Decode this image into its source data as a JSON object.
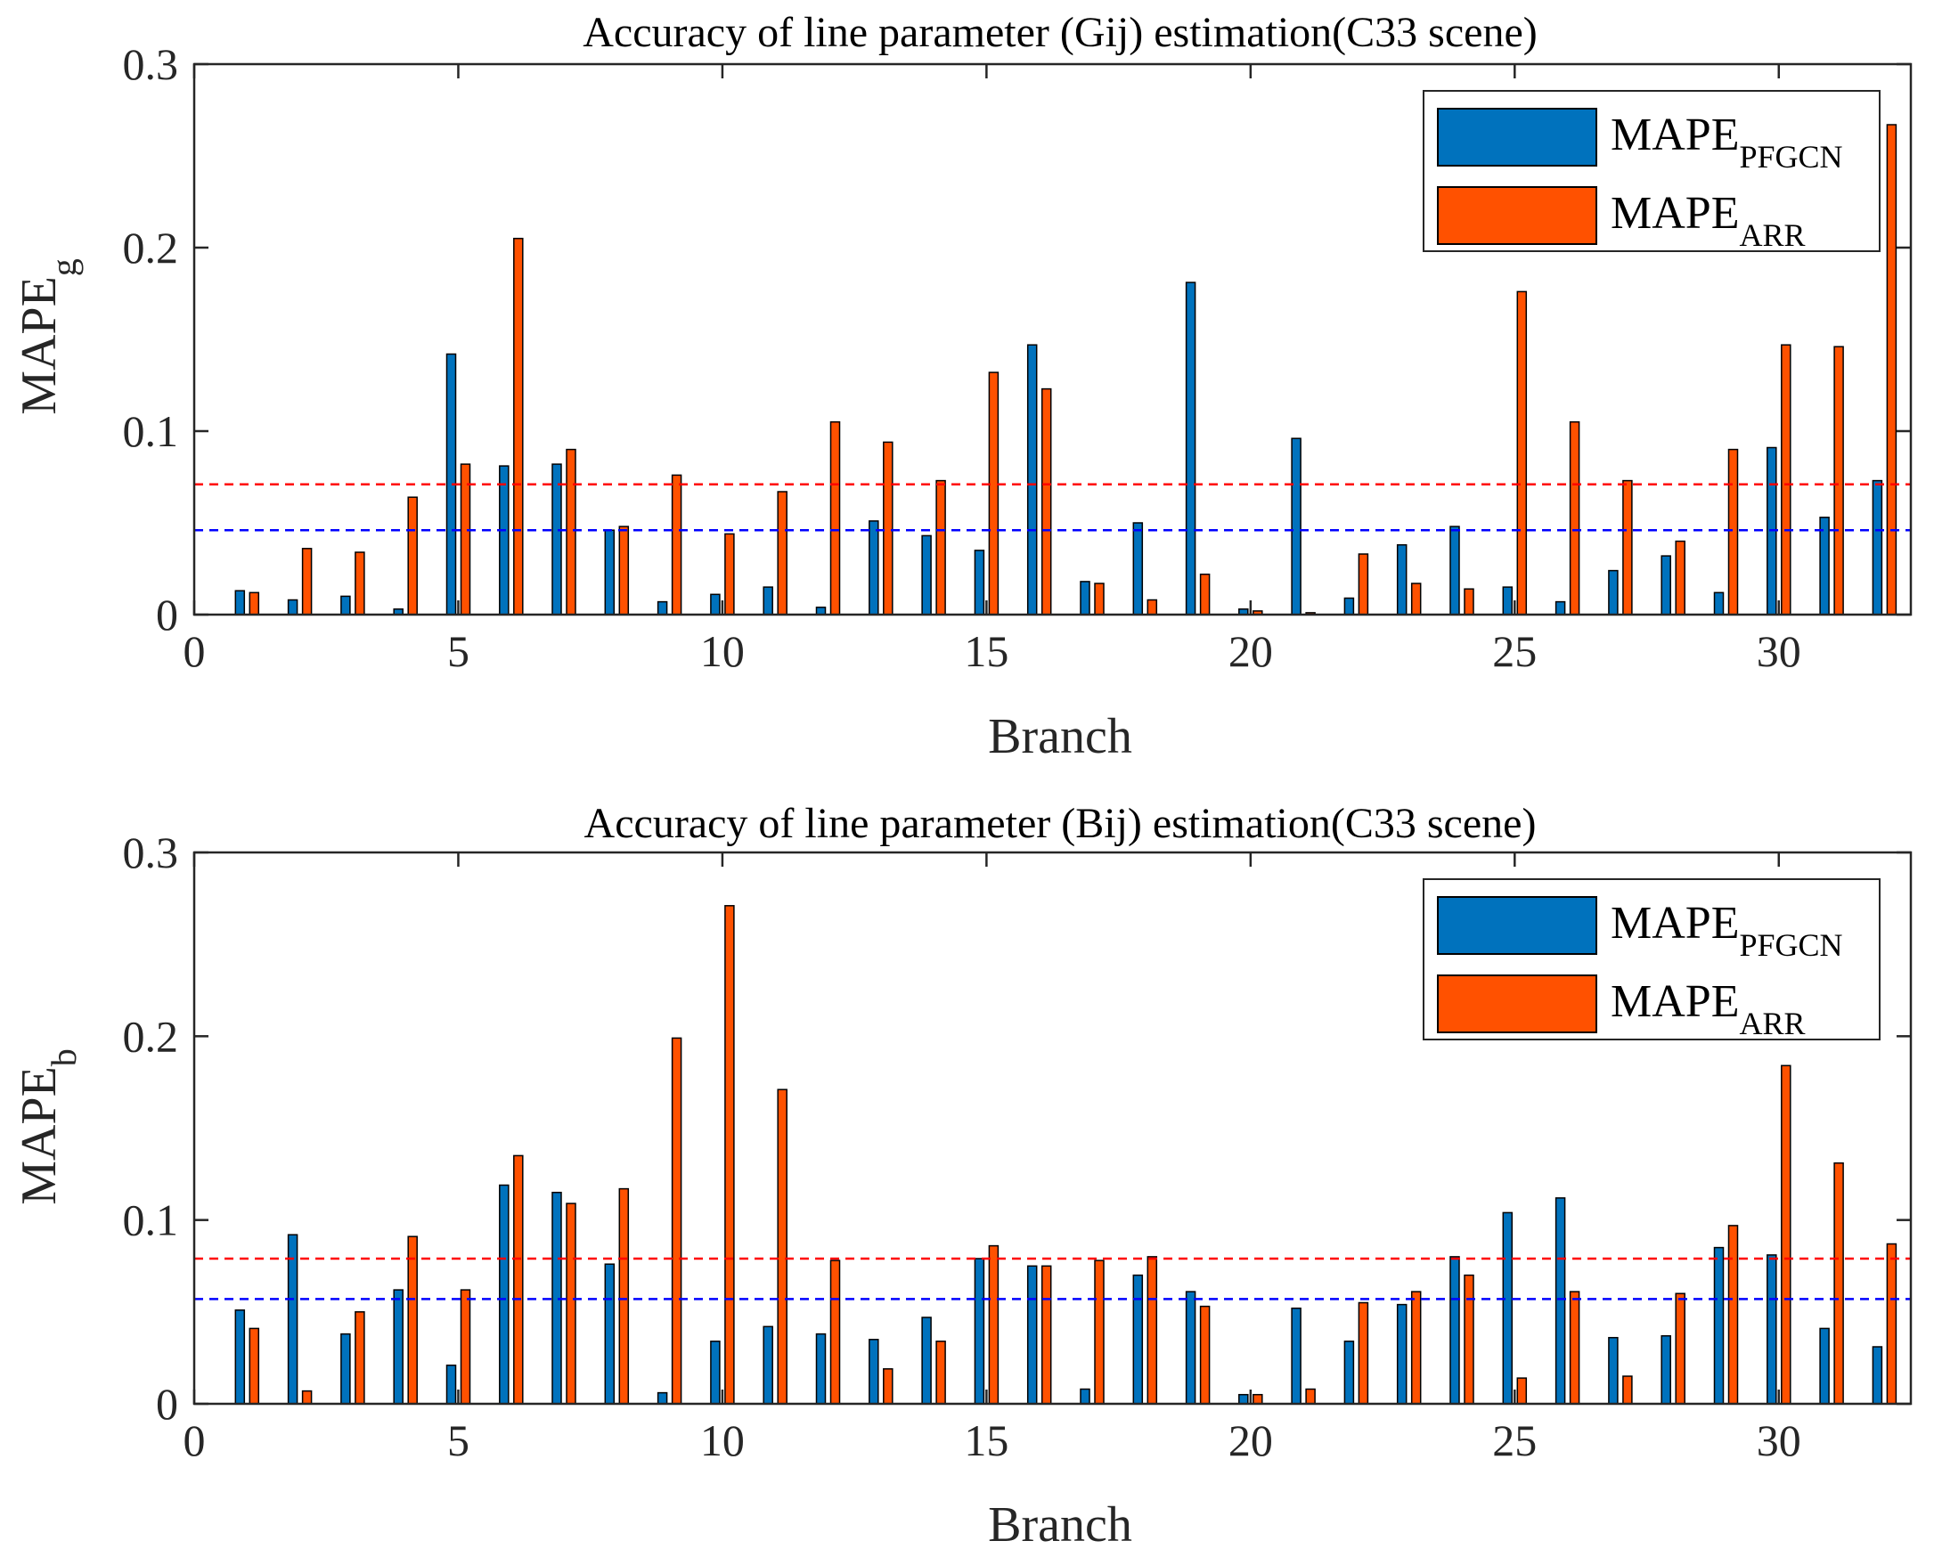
{
  "colors": {
    "pfgcn": "#0072BD",
    "arr": "#FF5100",
    "mean_pfgcn": "#0000FF",
    "mean_arr": "#FF0000"
  },
  "chart_data": [
    {
      "type": "bar",
      "title": "Accuracy of line parameter (Gij) estimation(C33 scene)",
      "xlabel": "Branch",
      "ylabel_main": "MAPE",
      "ylabel_sub": "g",
      "xlim": [
        0,
        32.5
      ],
      "ylim": [
        0,
        0.3
      ],
      "xticks": [
        "0",
        "5",
        "10",
        "15",
        "20",
        "25",
        "30"
      ],
      "yticks": [
        "0",
        "0.1",
        "0.2",
        "0.3"
      ],
      "legend_position": "top-right",
      "categories": [
        1,
        2,
        3,
        4,
        5,
        6,
        7,
        8,
        9,
        10,
        11,
        12,
        13,
        14,
        15,
        16,
        17,
        18,
        19,
        20,
        21,
        22,
        23,
        24,
        25,
        26,
        27,
        28,
        29,
        30,
        31,
        32
      ],
      "series": [
        {
          "name": "MAPE",
          "sub": "PFGCN",
          "color_key": "pfgcn",
          "values": [
            0.013,
            0.008,
            0.01,
            0.003,
            0.142,
            0.081,
            0.082,
            0.046,
            0.007,
            0.011,
            0.015,
            0.004,
            0.051,
            0.043,
            0.035,
            0.147,
            0.018,
            0.05,
            0.181,
            0.003,
            0.096,
            0.009,
            0.038,
            0.048,
            0.015,
            0.007,
            0.024,
            0.032,
            0.012,
            0.091,
            0.053,
            0.073
          ]
        },
        {
          "name": "MAPE",
          "sub": "ARR",
          "color_key": "arr",
          "values": [
            0.012,
            0.036,
            0.034,
            0.064,
            0.082,
            0.205,
            0.09,
            0.048,
            0.076,
            0.044,
            0.067,
            0.105,
            0.094,
            0.073,
            0.132,
            0.123,
            0.017,
            0.008,
            0.022,
            0.002,
            0.001,
            0.033,
            0.017,
            0.014,
            0.176,
            0.105,
            0.073,
            0.04,
            0.09,
            0.147,
            0.146,
            0.267
          ]
        }
      ],
      "mean_lines": [
        {
          "name": "mean PFGCN",
          "value": 0.046,
          "color_key": "mean_pfgcn"
        },
        {
          "name": "mean ARR",
          "value": 0.071,
          "color_key": "mean_arr"
        }
      ]
    },
    {
      "type": "bar",
      "title": "Accuracy of line parameter (Bij) estimation(C33 scene)",
      "xlabel": "Branch",
      "ylabel_main": "MAPE",
      "ylabel_sub": "b",
      "xlim": [
        0,
        32.5
      ],
      "ylim": [
        0,
        0.3
      ],
      "xticks": [
        "0",
        "5",
        "10",
        "15",
        "20",
        "25",
        "30"
      ],
      "yticks": [
        "0",
        "0.1",
        "0.2",
        "0.3"
      ],
      "legend_position": "top-right",
      "categories": [
        1,
        2,
        3,
        4,
        5,
        6,
        7,
        8,
        9,
        10,
        11,
        12,
        13,
        14,
        15,
        16,
        17,
        18,
        19,
        20,
        21,
        22,
        23,
        24,
        25,
        26,
        27,
        28,
        29,
        30,
        31,
        32
      ],
      "series": [
        {
          "name": "MAPE",
          "sub": "PFGCN",
          "color_key": "pfgcn",
          "values": [
            0.051,
            0.092,
            0.038,
            0.062,
            0.021,
            0.119,
            0.115,
            0.076,
            0.006,
            0.034,
            0.042,
            0.038,
            0.035,
            0.047,
            0.079,
            0.075,
            0.008,
            0.07,
            0.061,
            0.005,
            0.052,
            0.034,
            0.054,
            0.08,
            0.104,
            0.112,
            0.036,
            0.037,
            0.085,
            0.081,
            0.041,
            0.031
          ]
        },
        {
          "name": "MAPE",
          "sub": "ARR",
          "color_key": "arr",
          "values": [
            0.041,
            0.007,
            0.05,
            0.091,
            0.062,
            0.135,
            0.109,
            0.117,
            0.199,
            0.271,
            0.171,
            0.078,
            0.019,
            0.034,
            0.086,
            0.075,
            0.078,
            0.08,
            0.053,
            0.005,
            0.008,
            0.055,
            0.061,
            0.07,
            0.014,
            0.061,
            0.015,
            0.06,
            0.097,
            0.184,
            0.131,
            0.087
          ]
        }
      ],
      "mean_lines": [
        {
          "name": "mean PFGCN",
          "value": 0.057,
          "color_key": "mean_pfgcn"
        },
        {
          "name": "mean ARR",
          "value": 0.079,
          "color_key": "mean_arr"
        }
      ]
    }
  ]
}
